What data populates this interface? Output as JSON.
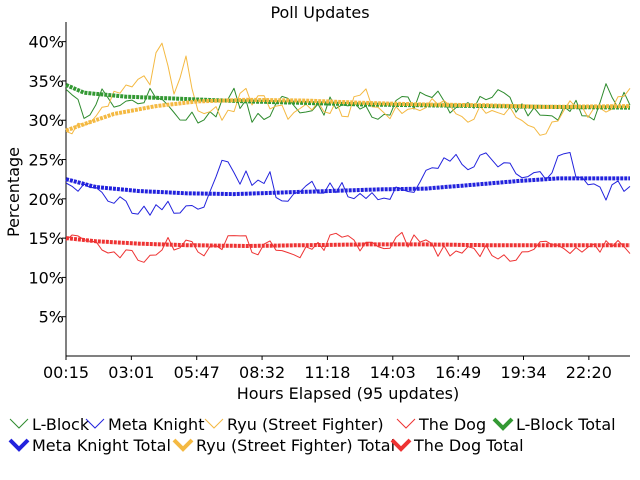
{
  "chart_data": {
    "type": "line",
    "title": "Poll Updates",
    "xlabel": "Hours Elapsed (95 updates)",
    "ylabel": "Percentage",
    "x_tick_labels": [
      "00:15",
      "03:01",
      "05:47",
      "08:32",
      "11:18",
      "14:03",
      "16:49",
      "19:34",
      "22:20"
    ],
    "y_ticks": [
      5,
      10,
      15,
      20,
      25,
      30,
      35,
      40
    ],
    "y_tick_labels": [
      "5%",
      "10%",
      "15%",
      "20%",
      "25%",
      "30%",
      "35%",
      "40%"
    ],
    "ylim": [
      0,
      42.5
    ],
    "num_points": 95,
    "grid": false,
    "legend_position": "bottom",
    "series": [
      {
        "name": "L-Block",
        "color": "#2e8b2e",
        "style": "thin",
        "anchors": [
          [
            0,
            34.5
          ],
          [
            3,
            31
          ],
          [
            6,
            33
          ],
          [
            10,
            32
          ],
          [
            14,
            33
          ],
          [
            18,
            31.5
          ],
          [
            20,
            30
          ],
          [
            24,
            31
          ],
          [
            28,
            33
          ],
          [
            32,
            30
          ],
          [
            36,
            32.5
          ],
          [
            40,
            30.5
          ],
          [
            44,
            32
          ],
          [
            48,
            33
          ],
          [
            52,
            30
          ],
          [
            56,
            32
          ],
          [
            60,
            33
          ],
          [
            62,
            34.5
          ],
          [
            64,
            30.5
          ],
          [
            68,
            32
          ],
          [
            72,
            33
          ],
          [
            76,
            31
          ],
          [
            80,
            30
          ],
          [
            84,
            32
          ],
          [
            88,
            31
          ],
          [
            90,
            34
          ],
          [
            92,
            32
          ],
          [
            94,
            33
          ]
        ]
      },
      {
        "name": "Meta Knight",
        "color": "#2222dd",
        "style": "thin",
        "anchors": [
          [
            0,
            22.5
          ],
          [
            4,
            21
          ],
          [
            8,
            19.5
          ],
          [
            12,
            19
          ],
          [
            16,
            18.5
          ],
          [
            20,
            19
          ],
          [
            24,
            20
          ],
          [
            26,
            24
          ],
          [
            30,
            22.5
          ],
          [
            34,
            23
          ],
          [
            36,
            19
          ],
          [
            40,
            21
          ],
          [
            44,
            22
          ],
          [
            48,
            21
          ],
          [
            52,
            20
          ],
          [
            56,
            21
          ],
          [
            58,
            20.5
          ],
          [
            60,
            24
          ],
          [
            64,
            25.5
          ],
          [
            68,
            24.5
          ],
          [
            72,
            25
          ],
          [
            76,
            23.5
          ],
          [
            80,
            22
          ],
          [
            82,
            26
          ],
          [
            84,
            25
          ],
          [
            86,
            22
          ],
          [
            90,
            20
          ],
          [
            92,
            22.5
          ],
          [
            94,
            21
          ]
        ]
      },
      {
        "name": "Ryu (Street Fighter)",
        "color": "#f4b942",
        "style": "thin",
        "anchors": [
          [
            0,
            29
          ],
          [
            4,
            30
          ],
          [
            8,
            33
          ],
          [
            10,
            34
          ],
          [
            14,
            35
          ],
          [
            16,
            40
          ],
          [
            18,
            34
          ],
          [
            20,
            38
          ],
          [
            22,
            32
          ],
          [
            26,
            31
          ],
          [
            30,
            33
          ],
          [
            34,
            32
          ],
          [
            38,
            30
          ],
          [
            42,
            32.5
          ],
          [
            46,
            31
          ],
          [
            50,
            33
          ],
          [
            54,
            31
          ],
          [
            58,
            32
          ],
          [
            62,
            33
          ],
          [
            66,
            30
          ],
          [
            70,
            31
          ],
          [
            74,
            32
          ],
          [
            78,
            29
          ],
          [
            80,
            28
          ],
          [
            84,
            32
          ],
          [
            88,
            31
          ],
          [
            92,
            33
          ],
          [
            94,
            34
          ]
        ]
      },
      {
        "name": "The Dog",
        "color": "#ee3333",
        "style": "thin",
        "anchors": [
          [
            0,
            15
          ],
          [
            4,
            13.5
          ],
          [
            8,
            14
          ],
          [
            12,
            12
          ],
          [
            16,
            14
          ],
          [
            20,
            14.5
          ],
          [
            24,
            13.5
          ],
          [
            28,
            15
          ],
          [
            32,
            13.5
          ],
          [
            36,
            14.5
          ],
          [
            40,
            13
          ],
          [
            44,
            15
          ],
          [
            48,
            14
          ],
          [
            52,
            14.5
          ],
          [
            56,
            15
          ],
          [
            60,
            14
          ],
          [
            64,
            13.5
          ],
          [
            68,
            14
          ],
          [
            72,
            12.5
          ],
          [
            76,
            13.5
          ],
          [
            80,
            14.5
          ],
          [
            84,
            13
          ],
          [
            88,
            14
          ],
          [
            92,
            14.5
          ],
          [
            94,
            13.5
          ]
        ]
      },
      {
        "name": "L-Block Total",
        "color": "#339933",
        "style": "thick",
        "anchors": [
          [
            0,
            34.5
          ],
          [
            3,
            33.5
          ],
          [
            10,
            33
          ],
          [
            20,
            32.7
          ],
          [
            30,
            32.4
          ],
          [
            40,
            32.2
          ],
          [
            50,
            32
          ],
          [
            60,
            31.9
          ],
          [
            70,
            31.8
          ],
          [
            80,
            31.7
          ],
          [
            94,
            31.6
          ]
        ]
      },
      {
        "name": "Meta Knight Total",
        "color": "#2222dd",
        "style": "thick",
        "anchors": [
          [
            0,
            22.5
          ],
          [
            5,
            21.5
          ],
          [
            12,
            21
          ],
          [
            20,
            20.7
          ],
          [
            28,
            20.6
          ],
          [
            36,
            20.8
          ],
          [
            44,
            21
          ],
          [
            52,
            21.2
          ],
          [
            60,
            21.3
          ],
          [
            68,
            21.8
          ],
          [
            76,
            22.3
          ],
          [
            82,
            22.6
          ],
          [
            94,
            22.6
          ]
        ]
      },
      {
        "name": "Ryu (Street Fighter) Total",
        "color": "#f4b942",
        "style": "thick",
        "anchors": [
          [
            0,
            28.7
          ],
          [
            3,
            29.5
          ],
          [
            8,
            30.8
          ],
          [
            15,
            31.8
          ],
          [
            22,
            32.4
          ],
          [
            30,
            32.6
          ],
          [
            40,
            32.5
          ],
          [
            50,
            32.2
          ],
          [
            60,
            32
          ],
          [
            70,
            31.9
          ],
          [
            80,
            31.7
          ],
          [
            94,
            31.8
          ]
        ]
      },
      {
        "name": "The Dog Total",
        "color": "#ee3333",
        "style": "thick",
        "anchors": [
          [
            0,
            15
          ],
          [
            5,
            14.6
          ],
          [
            12,
            14.3
          ],
          [
            20,
            14.1
          ],
          [
            30,
            14
          ],
          [
            40,
            14.1
          ],
          [
            50,
            14.2
          ],
          [
            60,
            14.2
          ],
          [
            70,
            14.1
          ],
          [
            80,
            14.1
          ],
          [
            94,
            14.1
          ]
        ]
      }
    ]
  }
}
